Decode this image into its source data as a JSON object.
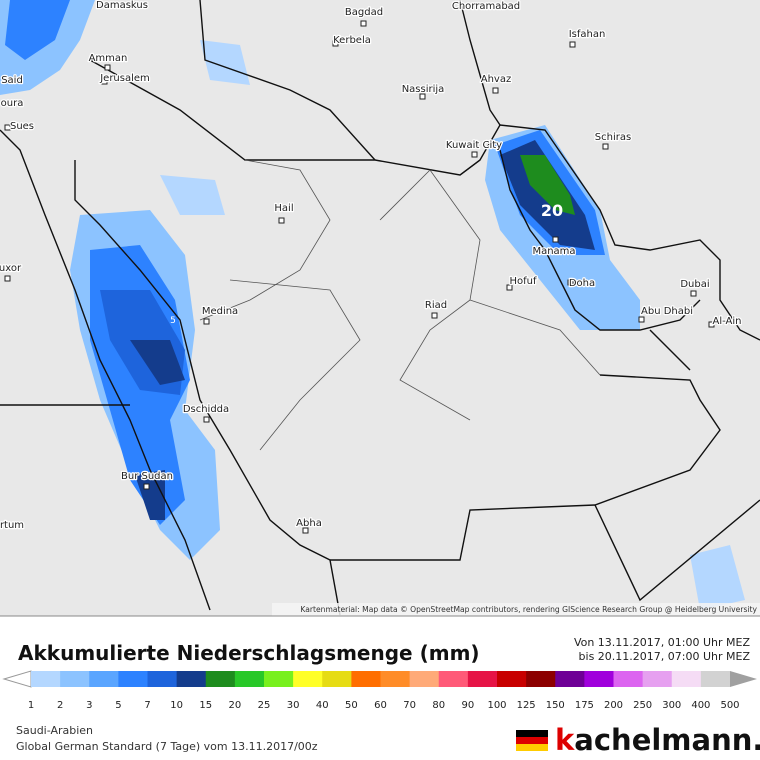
{
  "map": {
    "cities": [
      "Damaskus",
      "Bagdad",
      "Chorramabad",
      "Isfahan",
      "Kerbela",
      "Amman",
      "Jerusalem",
      "Said",
      "oura",
      "Sues",
      "Ahvaz",
      "Nassirija",
      "Kuwait City",
      "Schiras",
      "Hail",
      "Manama",
      "Hofuf",
      "Doha",
      "Riad",
      "Medina",
      "Dubai",
      "Abu Dhabi",
      "Al-Ain",
      "Dschidda",
      "Bur Sudan",
      "Abha",
      "uxor",
      "rtum"
    ],
    "contour_labels": [
      "20",
      "5"
    ],
    "attribution": "Kartenmaterial: Map data © OpenStreetMap contributors, rendering GIScience Research Group @ Heidelberg University"
  },
  "header": {
    "title": "Akkumulierte Niederschlagsmenge (mm)",
    "from": "Von 13.11.2017, 01:00 Uhr MEZ",
    "to": "bis 20.11.2017, 07:00 Uhr MEZ"
  },
  "legend": {
    "values": [
      1,
      2,
      3,
      5,
      7,
      10,
      15,
      20,
      25,
      30,
      40,
      50,
      60,
      70,
      80,
      90,
      100,
      125,
      150,
      175,
      200,
      250,
      300,
      400,
      500
    ],
    "colors": [
      "#b4d7ff",
      "#8cc3ff",
      "#5aa5ff",
      "#2d82ff",
      "#1e64dc",
      "#143c8c",
      "#1e8c1e",
      "#28c828",
      "#78f01e",
      "#ffff28",
      "#e6dc14",
      "#ff6e00",
      "#ff8c28",
      "#ffaa78",
      "#ff5a78",
      "#e61446",
      "#c80000",
      "#8c0000",
      "#6e0096",
      "#a000dc",
      "#dc64f0",
      "#e6a0f0",
      "#f5dcf5",
      "#d2d2d2"
    ],
    "below_color": "#ffffff",
    "above_color": "#a0a0a0"
  },
  "footer": {
    "region": "Saudi-Arabien",
    "model": "Global German Standard (7 Tage) vom 13.11.2017/00z"
  },
  "logo": {
    "k": "k",
    "rest": "achelmann."
  }
}
